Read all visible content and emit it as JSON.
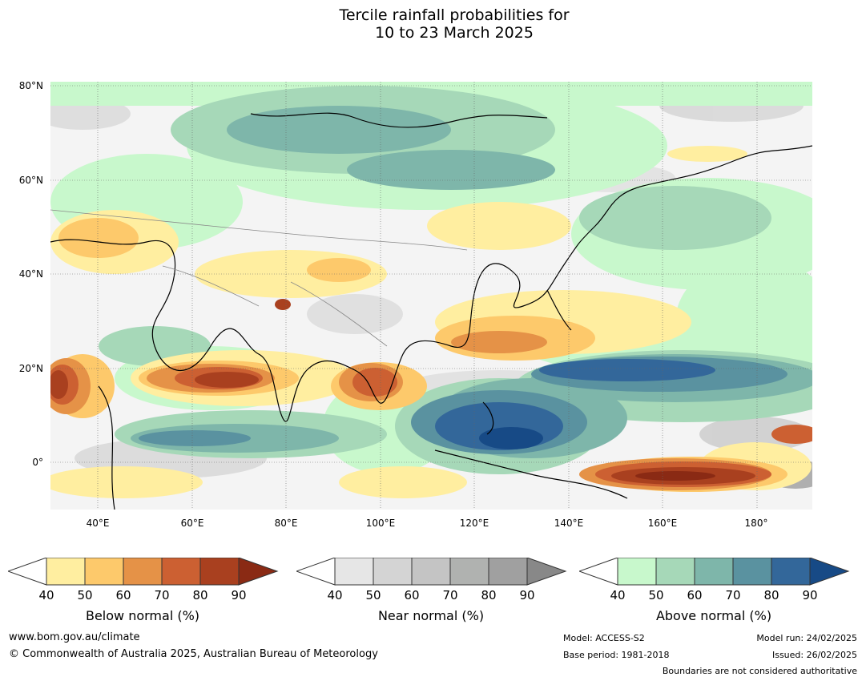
{
  "title": {
    "line1": "Tercile rainfall probabilities for",
    "line2": "10 to 23 March 2025"
  },
  "map": {
    "lat_labels": [
      "80°N",
      "60°N",
      "40°N",
      "20°N",
      "0°"
    ],
    "lon_labels": [
      "40°E",
      "60°E",
      "80°E",
      "100°E",
      "120°E",
      "140°E",
      "160°E",
      "180°"
    ]
  },
  "legends": [
    {
      "title": "Below normal (%)",
      "ticks": [
        "40",
        "50",
        "60",
        "70",
        "80",
        "90"
      ],
      "colors": [
        "#ffeea0",
        "#fdc96b",
        "#e59247",
        "#cc6032",
        "#a9401f",
        "#8a2a14"
      ]
    },
    {
      "title": "Near normal (%)",
      "ticks": [
        "40",
        "50",
        "60",
        "70",
        "80",
        "90"
      ],
      "colors": [
        "#e6e6e6",
        "#d4d4d4",
        "#c4c4c4",
        "#b0b2b0",
        "#a0a0a0",
        "#888888"
      ]
    },
    {
      "title": "Above normal (%)",
      "ticks": [
        "40",
        "50",
        "60",
        "70",
        "80",
        "90"
      ],
      "colors": [
        "#c8f8cc",
        "#a6d8b8",
        "#7eb6aa",
        "#5a92a0",
        "#33679a",
        "#174a86"
      ]
    }
  ],
  "footer": {
    "url": "www.bom.gov.au/climate",
    "copyright": "© Commonwealth of Australia 2025, Australian Bureau of Meteorology",
    "model": "Model: ACCESS-S2",
    "base_period": "Base period: 1981-2018",
    "model_run": "Model run: 24/02/2025",
    "issued": "Issued: 26/02/2025",
    "disclaimer": "Boundaries are not considered authoritative"
  }
}
